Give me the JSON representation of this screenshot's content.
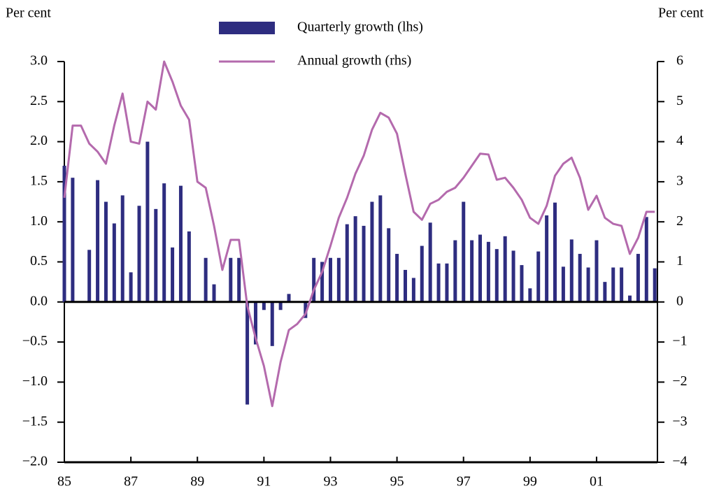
{
  "chart_data": {
    "type": "combo",
    "y_label_left": "Per cent",
    "y_label_right": "Per cent",
    "x": [
      1985,
      1985.25,
      1985.5,
      1985.75,
      1986,
      1986.25,
      1986.5,
      1986.75,
      1987,
      1987.25,
      1987.5,
      1987.75,
      1988,
      1988.25,
      1988.5,
      1988.75,
      1989,
      1989.25,
      1989.5,
      1989.75,
      1990,
      1990.25,
      1990.5,
      1990.75,
      1991,
      1991.25,
      1991.5,
      1991.75,
      1992,
      1992.25,
      1992.5,
      1992.75,
      1993,
      1993.25,
      1993.5,
      1993.75,
      1994,
      1994.25,
      1994.5,
      1994.75,
      1995,
      1995.25,
      1995.5,
      1995.75,
      1996,
      1996.25,
      1996.5,
      1996.75,
      1997,
      1997.25,
      1997.5,
      1997.75,
      1998,
      1998.25,
      1998.5,
      1998.75,
      1999,
      1999.25,
      1999.5,
      1999.75,
      2000,
      2000.25,
      2000.5,
      2000.75,
      2001,
      2001.25,
      2001.5,
      2001.75,
      2002,
      2002.25,
      2002.5,
      2002.75
    ],
    "series": [
      {
        "name": "Quarterly growth (lhs)",
        "type": "bar",
        "axis": "y",
        "color": "#2e2d80",
        "values": [
          1.7,
          1.55,
          0,
          0.65,
          1.52,
          1.25,
          0.98,
          1.33,
          0.37,
          1.2,
          2.0,
          1.16,
          1.48,
          0.68,
          1.45,
          0.88,
          0,
          0.55,
          0.22,
          0,
          0.55,
          0.55,
          -1.28,
          -0.53,
          -0.1,
          -0.55,
          -0.1,
          0.1,
          0,
          -0.2,
          0.55,
          0.5,
          0.55,
          0.55,
          0.97,
          1.07,
          0.95,
          1.25,
          1.33,
          0.92,
          0.6,
          0.4,
          0.3,
          0.7,
          0.99,
          0.48,
          0.48,
          0.77,
          1.25,
          0.77,
          0.84,
          0.75,
          0.66,
          0.82,
          0.64,
          0.46,
          0.17,
          0.63,
          1.08,
          1.24,
          0.44,
          0.78,
          0.6,
          0.43,
          0.77,
          0.25,
          0.43,
          0.43,
          0.08,
          0.6,
          1.06,
          0.42
        ]
      },
      {
        "name": "Annual growth (rhs)",
        "type": "line",
        "axis": "y2",
        "color": "#b46aad",
        "values": [
          2.6,
          4.4,
          4.4,
          3.95,
          3.75,
          3.45,
          4.4,
          5.2,
          4.0,
          3.95,
          5.0,
          4.8,
          6.0,
          5.5,
          4.9,
          4.55,
          3.0,
          2.85,
          1.9,
          0.8,
          1.55,
          1.55,
          -0.1,
          -0.9,
          -1.6,
          -2.6,
          -1.5,
          -0.7,
          -0.55,
          -0.3,
          0.3,
          0.75,
          1.4,
          2.1,
          2.6,
          3.2,
          3.65,
          4.3,
          4.72,
          4.6,
          4.2,
          3.2,
          2.25,
          2.05,
          2.45,
          2.55,
          2.75,
          2.85,
          3.1,
          3.4,
          3.7,
          3.68,
          3.05,
          3.1,
          2.85,
          2.55,
          2.1,
          1.95,
          2.4,
          3.15,
          3.45,
          3.6,
          3.1,
          2.3,
          2.65,
          2.1,
          1.95,
          1.9,
          1.2,
          1.6,
          2.25,
          2.25
        ]
      }
    ],
    "xlim": [
      1985,
      2002.83
    ],
    "xticks": [
      {
        "value": 1985,
        "label": "85"
      },
      {
        "value": 1987,
        "label": "87"
      },
      {
        "value": 1989,
        "label": "89"
      },
      {
        "value": 1991,
        "label": "91"
      },
      {
        "value": 1993,
        "label": "93"
      },
      {
        "value": 1995,
        "label": "95"
      },
      {
        "value": 1997,
        "label": "97"
      },
      {
        "value": 1999,
        "label": "99"
      },
      {
        "value": 2001,
        "label": "01"
      }
    ],
    "ylim": [
      -2,
      3
    ],
    "yticks": [
      {
        "value": -2,
        "label": "−2.0"
      },
      {
        "value": -1.5,
        "label": "−1.5"
      },
      {
        "value": -1,
        "label": "−1.0"
      },
      {
        "value": -0.5,
        "label": "−0.5"
      },
      {
        "value": 0,
        "label": "0.0"
      },
      0.5,
      {
        "value": 1,
        "label": "1.0"
      },
      1.5,
      {
        "value": 2,
        "label": "2.0"
      },
      2.5,
      {
        "value": 3,
        "label": "3.0"
      }
    ],
    "y2lim": [
      -4,
      6
    ],
    "y2ticks": [
      {
        "value": -4,
        "label": "−4"
      },
      {
        "value": -3,
        "label": "−3"
      },
      {
        "value": -2,
        "label": "−2"
      },
      {
        "value": -1,
        "label": "−1"
      },
      0,
      1,
      2,
      3,
      4,
      5,
      6
    ]
  }
}
